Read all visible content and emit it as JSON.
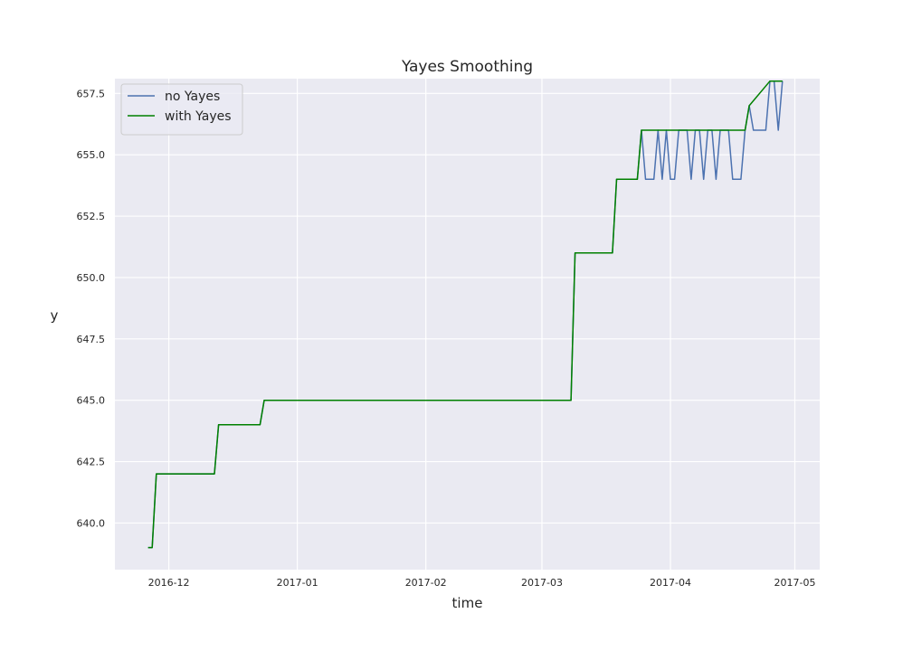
{
  "chart_data": {
    "type": "line",
    "title": "Yayes Smoothing",
    "xlabel": "time",
    "ylabel": "y",
    "x_axis_type": "date",
    "xlim": [
      "2016-11-18",
      "2017-05-07"
    ],
    "ylim": [
      638.1,
      658.1
    ],
    "x_ticks": [
      "2016-12-01",
      "2017-01-01",
      "2017-02-01",
      "2017-03-01",
      "2017-04-01",
      "2017-05-01"
    ],
    "x_tick_labels": [
      "2016-12",
      "2017-01",
      "2017-02",
      "2017-03",
      "2017-04",
      "2017-05"
    ],
    "y_ticks": [
      640.0,
      642.5,
      645.0,
      647.5,
      650.0,
      652.5,
      655.0,
      657.5
    ],
    "y_tick_labels": [
      "640.0",
      "642.5",
      "645.0",
      "647.5",
      "650.0",
      "652.5",
      "655.0",
      "657.5"
    ],
    "grid": true,
    "legend_position": "top-left",
    "background_color": "#eaeaf2",
    "series": [
      {
        "name": "no Yayes",
        "color": "#4c72b0",
        "points": [
          [
            "2016-11-26",
            639
          ],
          [
            "2016-11-27",
            639
          ],
          [
            "2016-11-28",
            642
          ],
          [
            "2016-12-12",
            642
          ],
          [
            "2016-12-13",
            644
          ],
          [
            "2016-12-23",
            644
          ],
          [
            "2016-12-24",
            645
          ],
          [
            "2017-03-08",
            645
          ],
          [
            "2017-03-09",
            651
          ],
          [
            "2017-03-18",
            651
          ],
          [
            "2017-03-19",
            654
          ],
          [
            "2017-03-24",
            654
          ],
          [
            "2017-03-25",
            656
          ],
          [
            "2017-03-26",
            654
          ],
          [
            "2017-03-28",
            654
          ],
          [
            "2017-03-29",
            656
          ],
          [
            "2017-03-30",
            654
          ],
          [
            "2017-03-31",
            656
          ],
          [
            "2017-04-01",
            654
          ],
          [
            "2017-04-02",
            654
          ],
          [
            "2017-04-03",
            656
          ],
          [
            "2017-04-05",
            656
          ],
          [
            "2017-04-06",
            654
          ],
          [
            "2017-04-07",
            656
          ],
          [
            "2017-04-08",
            656
          ],
          [
            "2017-04-09",
            654
          ],
          [
            "2017-04-10",
            656
          ],
          [
            "2017-04-11",
            656
          ],
          [
            "2017-04-12",
            654
          ],
          [
            "2017-04-13",
            656
          ],
          [
            "2017-04-15",
            656
          ],
          [
            "2017-04-16",
            654
          ],
          [
            "2017-04-18",
            654
          ],
          [
            "2017-04-19",
            656
          ],
          [
            "2017-04-20",
            657
          ],
          [
            "2017-04-21",
            656
          ],
          [
            "2017-04-24",
            656
          ],
          [
            "2017-04-25",
            658
          ],
          [
            "2017-04-26",
            658
          ],
          [
            "2017-04-27",
            656
          ],
          [
            "2017-04-28",
            658
          ]
        ]
      },
      {
        "name": "with Yayes",
        "color": "#008000",
        "points": [
          [
            "2016-11-26",
            639
          ],
          [
            "2016-11-27",
            639
          ],
          [
            "2016-11-28",
            642
          ],
          [
            "2016-12-12",
            642
          ],
          [
            "2016-12-13",
            644
          ],
          [
            "2016-12-23",
            644
          ],
          [
            "2016-12-24",
            645
          ],
          [
            "2017-03-08",
            645
          ],
          [
            "2017-03-09",
            651
          ],
          [
            "2017-03-18",
            651
          ],
          [
            "2017-03-19",
            654
          ],
          [
            "2017-03-24",
            654
          ],
          [
            "2017-03-25",
            656
          ],
          [
            "2017-04-19",
            656
          ],
          [
            "2017-04-20",
            657
          ],
          [
            "2017-04-25",
            658
          ],
          [
            "2017-04-28",
            658
          ]
        ]
      }
    ]
  }
}
